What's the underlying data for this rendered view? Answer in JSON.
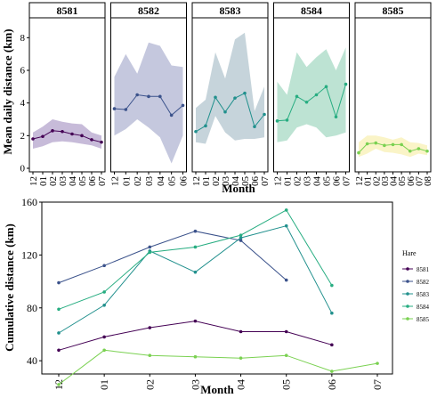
{
  "chart_data": [
    {
      "type": "area",
      "kind": "faceted-line-with-range",
      "ylabel": "Mean daily distance (km)",
      "xlabel": "Month",
      "ylim": [
        0,
        9
      ],
      "yticks": [
        0,
        2,
        4,
        6,
        8
      ],
      "grid": false,
      "panels": [
        {
          "name": "8581",
          "color": "#440154",
          "fill": "#b4a4cc",
          "x": [
            "12",
            "01",
            "02",
            "03",
            "04",
            "05",
            "06",
            "07"
          ],
          "mean": [
            1.8,
            1.95,
            2.3,
            2.25,
            2.1,
            2.0,
            1.75,
            1.6
          ],
          "lower": [
            1.2,
            1.35,
            1.6,
            1.65,
            1.6,
            1.5,
            1.4,
            1.2
          ],
          "upper": [
            2.2,
            2.55,
            3.0,
            2.85,
            2.75,
            2.7,
            2.2,
            2.0
          ]
        },
        {
          "name": "8582",
          "color": "#3b528b",
          "fill": "#b1b5d3",
          "x": [
            "12",
            "01",
            "02",
            "03",
            "04",
            "05",
            "06"
          ],
          "mean": [
            3.65,
            3.6,
            4.5,
            4.4,
            4.4,
            3.25,
            3.85
          ],
          "lower": [
            2.0,
            2.4,
            3.0,
            2.5,
            1.9,
            0.3,
            2.0
          ],
          "upper": [
            5.6,
            7.0,
            5.8,
            7.7,
            7.5,
            6.3,
            6.2
          ]
        },
        {
          "name": "8583",
          "color": "#21908d",
          "fill": "#b3c6cf",
          "x": [
            "12",
            "01",
            "02",
            "03",
            "04",
            "05",
            "06",
            "07"
          ],
          "mean": [
            2.25,
            2.6,
            4.35,
            3.45,
            4.3,
            4.6,
            2.55,
            3.3
          ],
          "lower": [
            1.6,
            1.5,
            3.2,
            2.2,
            1.7,
            1.8,
            1.8,
            1.9
          ],
          "upper": [
            3.7,
            4.2,
            7.1,
            5.5,
            7.9,
            8.3,
            3.5,
            5.0
          ]
        },
        {
          "name": "8584",
          "color": "#27ad81",
          "fill": "#a7d9c4",
          "x": [
            "12",
            "01",
            "02",
            "03",
            "04",
            "05",
            "06",
            "07"
          ],
          "mean": [
            2.9,
            2.95,
            4.4,
            4.05,
            4.5,
            5.0,
            3.15,
            5.15
          ],
          "lower": [
            1.6,
            1.7,
            2.5,
            2.7,
            2.5,
            1.9,
            2.0,
            2.2
          ],
          "upper": [
            5.3,
            4.5,
            7.1,
            6.2,
            6.8,
            7.3,
            6.0,
            7.4
          ]
        },
        {
          "name": "8585",
          "color": "#7ad151",
          "fill": "#f8f0b4",
          "x": [
            "12",
            "01",
            "02",
            "03",
            "04",
            "05",
            "06",
            "07",
            "08"
          ],
          "mean": [
            0.95,
            1.5,
            1.55,
            1.4,
            1.45,
            1.45,
            1.05,
            1.2,
            1.05
          ],
          "lower": [
            0.7,
            0.9,
            1.2,
            1.0,
            0.95,
            0.85,
            0.7,
            0.9,
            0.8
          ],
          "upper": [
            1.6,
            2.0,
            2.0,
            1.9,
            1.75,
            1.9,
            1.6,
            1.55,
            1.4
          ]
        }
      ]
    },
    {
      "type": "line",
      "ylabel": "Cumulative distance (km)",
      "xlabel": "Month",
      "categories": [
        "12",
        "01",
        "02",
        "03",
        "04",
        "05",
        "06",
        "07"
      ],
      "ylim": [
        30,
        160
      ],
      "yticks": [
        40,
        80,
        120,
        160
      ],
      "grid": false,
      "legend": {
        "title": "Hare",
        "placement": "right"
      },
      "series": [
        {
          "name": "8581",
          "color": "#440154",
          "values": [
            48,
            58,
            65,
            70,
            62,
            62,
            52,
            null
          ]
        },
        {
          "name": "8582",
          "color": "#3b528b",
          "values": [
            99,
            112,
            126,
            138,
            131,
            101,
            null,
            null
          ]
        },
        {
          "name": "8583",
          "color": "#21908d",
          "values": [
            61,
            82,
            123,
            107,
            133,
            142,
            76,
            null
          ]
        },
        {
          "name": "8584",
          "color": "#27ad81",
          "values": [
            79,
            92,
            122,
            126,
            135,
            154,
            97,
            null
          ]
        },
        {
          "name": "8585",
          "color": "#7ad151",
          "values": [
            22,
            48,
            44,
            43,
            42,
            44,
            32,
            38
          ]
        }
      ]
    }
  ]
}
